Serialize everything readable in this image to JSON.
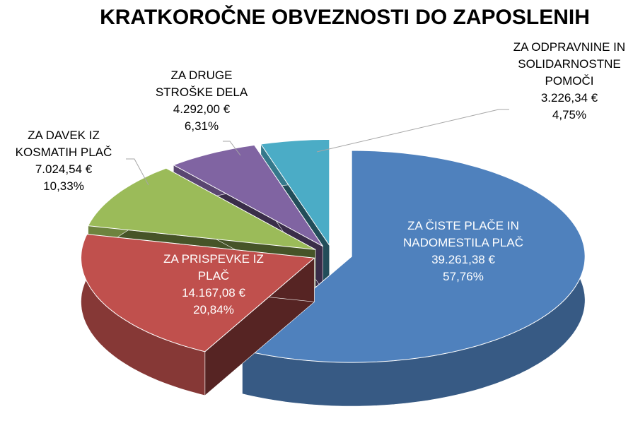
{
  "chart_data": {
    "type": "pie",
    "title": "KRATKOROČNE OBVEZNOSTI DO ZAPOSLENIH",
    "categories": [
      "ZA ČISTE PLAČE IN NADOMESTILA PLAČ",
      "ZA PRISPEVKE IZ PLAČ",
      "ZA DAVEK IZ KOSMATIH PLAČ",
      "ZA DRUGE STROŠKE DELA",
      "ZA ODPRAVNINE IN SOLIDARNOSTNE POMOČI"
    ],
    "values": [
      57.76,
      20.84,
      10.33,
      6.31,
      4.75
    ],
    "value_labels": [
      "57,76%",
      "20,84%",
      "10,33%",
      "6,31%",
      "4,75%"
    ],
    "amount_labels": [
      "39.261,38 €",
      "14.167,08 €",
      "7.024,54 €",
      "4.292,00 €",
      "3.226,34 €"
    ],
    "colors": [
      "#4f81bd",
      "#c0504d",
      "#9bbb59",
      "#8064a2",
      "#4bacc6"
    ]
  }
}
